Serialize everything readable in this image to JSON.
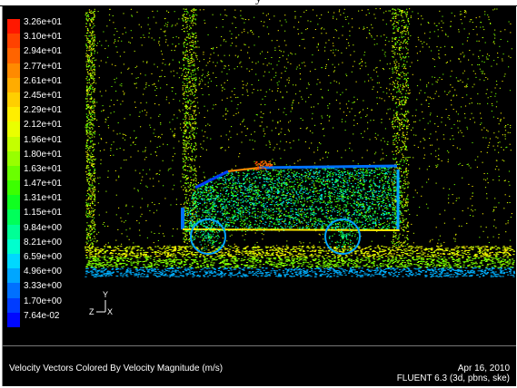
{
  "top_caption": "y",
  "legend": {
    "labels": [
      "3.26e+01",
      "3.10e+01",
      "2.94e+01",
      "2.77e+01",
      "2.61e+01",
      "2.45e+01",
      "2.29e+01",
      "2.12e+01",
      "1.96e+01",
      "1.80e+01",
      "1.63e+01",
      "1.47e+01",
      "1.31e+01",
      "1.15e+01",
      "9.84e+00",
      "8.21e+00",
      "6.59e+00",
      "4.96e+00",
      "3.33e+00",
      "1.70e+00",
      "7.64e-02"
    ],
    "colors": [
      "#ff1800",
      "#ff4200",
      "#ff6400",
      "#ff8a00",
      "#ffac00",
      "#ffcf00",
      "#ffee00",
      "#eaff00",
      "#c4ff00",
      "#98ff00",
      "#6aff00",
      "#3cff00",
      "#10ff20",
      "#00ff5a",
      "#00ff96",
      "#00ffce",
      "#00d8ff",
      "#00a6ff",
      "#0070ff",
      "#003cff",
      "#0008ff"
    ]
  },
  "axis": {
    "y": "Y",
    "z": "Z",
    "x": "X"
  },
  "footer": {
    "title": "Velocity Vectors Colored By Velocity Magnitude (m/s)",
    "date": "Apr 16, 2010",
    "version": "FLUENT 6.3 (3d, pbns, ske)"
  }
}
